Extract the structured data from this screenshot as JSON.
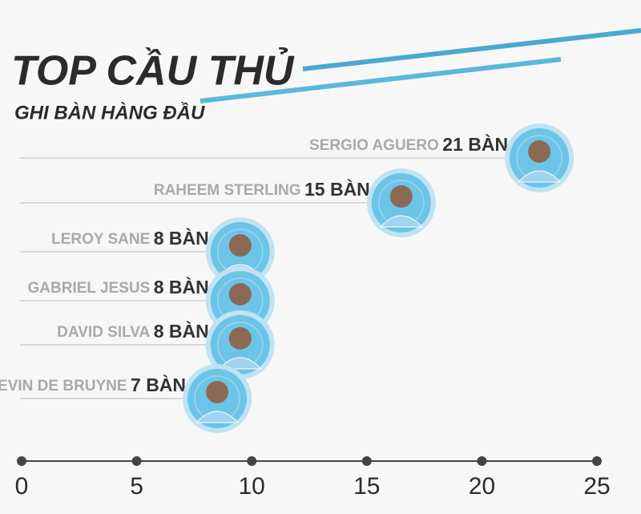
{
  "chart_data": {
    "type": "lollipop",
    "title": "TOP CẦU THỦ",
    "subtitle": "GHI BÀN HÀNG ĐẦU",
    "categories": [
      "SERGIO AGUERO",
      "RAHEEM STERLING",
      "LEROY SANE",
      "GABRIEL JESUS",
      "DAVID SILVA",
      "KEVIN DE BRUYNE"
    ],
    "values": [
      21,
      15,
      8,
      8,
      8,
      7
    ],
    "value_labels": [
      "21 BÀN",
      "15 BÀN",
      "8 BÀN",
      "8 BÀN",
      "8 BÀN",
      "7 BÀN"
    ],
    "color": "#6cc4e8",
    "xlim": [
      0,
      25
    ],
    "xticks": [
      0,
      5,
      10,
      15,
      20,
      25
    ]
  }
}
